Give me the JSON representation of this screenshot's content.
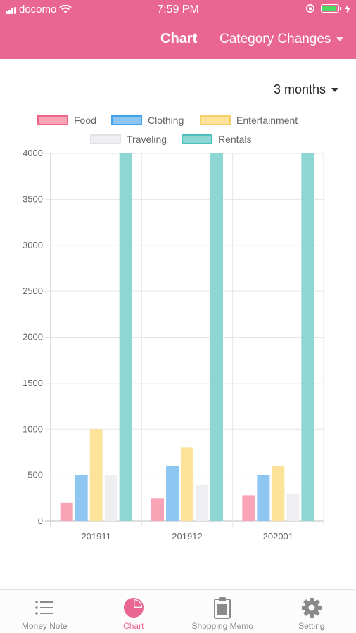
{
  "status_bar": {
    "carrier": "docomo",
    "time": "7:59 PM"
  },
  "nav": {
    "title": "Chart",
    "dropdown_label": "Category Changes"
  },
  "period_selector": {
    "label": "3 months"
  },
  "tabs": [
    {
      "label": "Money Note",
      "icon": "list-icon",
      "active": false
    },
    {
      "label": "Chart",
      "icon": "pie-chart-icon",
      "active": true
    },
    {
      "label": "Shopping Memo",
      "icon": "clipboard-icon",
      "active": false
    },
    {
      "label": "Setting",
      "icon": "gear-icon",
      "active": false
    }
  ],
  "colors": {
    "accent": "#e96592",
    "tab_inactive": "#8a8a8a"
  },
  "chart_data": {
    "type": "bar",
    "categories": [
      "201911",
      "201912",
      "202001"
    ],
    "series": [
      {
        "name": "Food",
        "values": [
          200,
          250,
          280
        ],
        "fill": "#f9a3b6",
        "stroke": "#f0668a"
      },
      {
        "name": "Clothing",
        "values": [
          500,
          600,
          500
        ],
        "fill": "#8ec6f2",
        "stroke": "#3fa2ea"
      },
      {
        "name": "Entertainment",
        "values": [
          1000,
          800,
          600
        ],
        "fill": "#fde29a",
        "stroke": "#f7cf68"
      },
      {
        "name": "Traveling",
        "values": [
          500,
          400,
          300
        ],
        "fill": "#efeff1",
        "stroke": "#e2e2e6"
      },
      {
        "name": "Rentals",
        "values": [
          4000,
          4000,
          4000
        ],
        "fill": "#8ed6d4",
        "stroke": "#4bc0bd"
      }
    ],
    "y_ticks": [
      "0",
      "500",
      "1000",
      "1500",
      "2000",
      "2500",
      "3000",
      "3500",
      "4000"
    ],
    "ylim": [
      0,
      4000
    ],
    "grid": true,
    "legend": "top"
  }
}
